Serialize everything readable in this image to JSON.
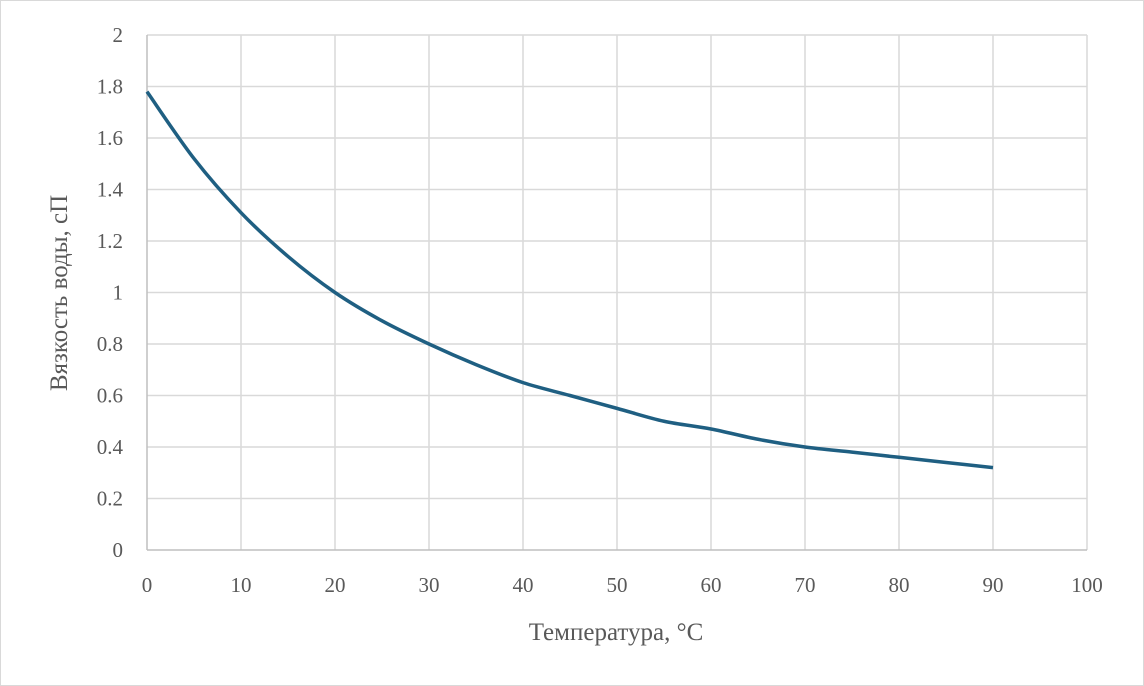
{
  "chart_data": {
    "type": "line",
    "xlabel": "Температура,  °C",
    "ylabel": "Вязкость воды, сП",
    "xlim": [
      0,
      100
    ],
    "ylim": [
      0,
      2
    ],
    "x_ticks": [
      "0",
      "10",
      "20",
      "30",
      "40",
      "50",
      "60",
      "70",
      "80",
      "90",
      "100"
    ],
    "y_ticks": [
      "0",
      "0.2",
      "0.4",
      "0.6",
      "0.8",
      "1",
      "1.2",
      "1.4",
      "1.6",
      "1.8",
      "2"
    ],
    "grid": true,
    "legend": "none",
    "series": [
      {
        "color": "#1f5f82",
        "x": [
          0,
          5,
          10,
          15,
          20,
          25,
          30,
          35,
          40,
          45,
          50,
          55,
          60,
          65,
          70,
          75,
          80,
          85,
          90
        ],
        "y": [
          1.78,
          1.52,
          1.31,
          1.14,
          1.0,
          0.89,
          0.8,
          0.72,
          0.65,
          0.6,
          0.55,
          0.5,
          0.47,
          0.43,
          0.4,
          0.38,
          0.36,
          0.34,
          0.32
        ]
      }
    ]
  }
}
